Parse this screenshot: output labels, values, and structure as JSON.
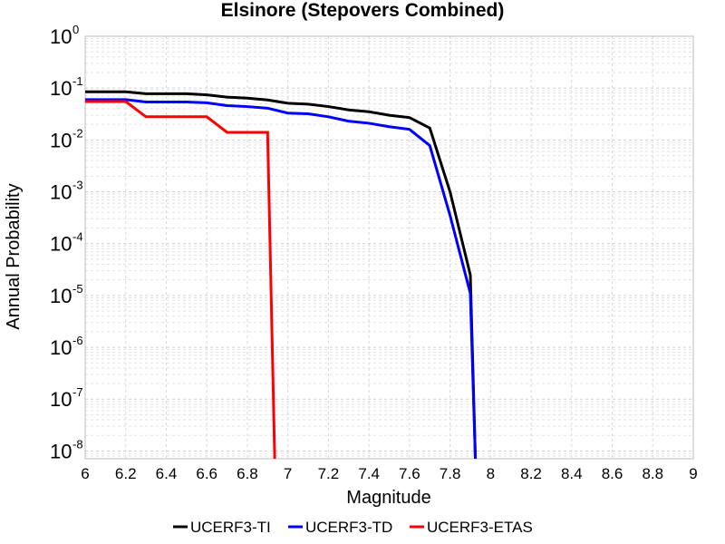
{
  "chart_data": {
    "type": "line",
    "title": "Elsinore (Stepovers Combined)",
    "xlabel": "Magnitude",
    "ylabel": "Annual Probability",
    "xlim": [
      6,
      9
    ],
    "ylim_log10": [
      -8.15,
      0
    ],
    "y_scale": "log",
    "grid": true,
    "legend_position": "bottom-center",
    "x_tick_labels": [
      "6",
      "6.2",
      "6.4",
      "6.6",
      "6.8",
      "7",
      "7.2",
      "7.4",
      "7.6",
      "7.8",
      "8",
      "8.2",
      "8.4",
      "8.6",
      "8.8",
      "9"
    ],
    "y_tick_labels": [
      {
        "base": "10",
        "exp": "0",
        "log10": 0
      },
      {
        "base": "10",
        "exp": "-1",
        "log10": -1
      },
      {
        "base": "10",
        "exp": "-2",
        "log10": -2
      },
      {
        "base": "10",
        "exp": "-3",
        "log10": -3
      },
      {
        "base": "10",
        "exp": "-4",
        "log10": -4
      },
      {
        "base": "10",
        "exp": "-5",
        "log10": -5
      },
      {
        "base": "10",
        "exp": "-6",
        "log10": -6
      },
      {
        "base": "10",
        "exp": "-7",
        "log10": -7
      },
      {
        "base": "10",
        "exp": "-8",
        "log10": -8
      }
    ],
    "series": [
      {
        "name": "UCERF3-TI",
        "color": "#000000",
        "points": [
          [
            6.0,
            0.085
          ],
          [
            6.2,
            0.085
          ],
          [
            6.3,
            0.078
          ],
          [
            6.5,
            0.078
          ],
          [
            6.6,
            0.074
          ],
          [
            6.7,
            0.067
          ],
          [
            6.8,
            0.064
          ],
          [
            6.9,
            0.059
          ],
          [
            7.0,
            0.051
          ],
          [
            7.1,
            0.049
          ],
          [
            7.2,
            0.044
          ],
          [
            7.3,
            0.038
          ],
          [
            7.4,
            0.035
          ],
          [
            7.5,
            0.03
          ],
          [
            7.6,
            0.027
          ],
          [
            7.7,
            0.017
          ],
          [
            7.8,
            0.001
          ],
          [
            7.9,
            2.5e-05
          ],
          [
            7.925,
            1e-09
          ]
        ]
      },
      {
        "name": "UCERF3-TD",
        "color": "#0000ff",
        "points": [
          [
            6.0,
            0.06
          ],
          [
            6.2,
            0.06
          ],
          [
            6.3,
            0.054
          ],
          [
            6.5,
            0.054
          ],
          [
            6.6,
            0.052
          ],
          [
            6.7,
            0.046
          ],
          [
            6.8,
            0.044
          ],
          [
            6.9,
            0.041
          ],
          [
            7.0,
            0.033
          ],
          [
            7.1,
            0.032
          ],
          [
            7.2,
            0.028
          ],
          [
            7.3,
            0.023
          ],
          [
            7.4,
            0.021
          ],
          [
            7.5,
            0.018
          ],
          [
            7.6,
            0.016
          ],
          [
            7.7,
            0.0078
          ],
          [
            7.8,
            0.00035
          ],
          [
            7.9,
            1.1e-05
          ],
          [
            7.925,
            1e-09
          ]
        ]
      },
      {
        "name": "UCERF3-ETAS",
        "color": "#ff0000",
        "points": [
          [
            6.0,
            0.055
          ],
          [
            6.2,
            0.055
          ],
          [
            6.3,
            0.028
          ],
          [
            6.4,
            0.028
          ],
          [
            6.5,
            0.028
          ],
          [
            6.6,
            0.028
          ],
          [
            6.7,
            0.014
          ],
          [
            6.8,
            0.014
          ],
          [
            6.9,
            0.014
          ],
          [
            6.935,
            1e-09
          ]
        ]
      }
    ]
  }
}
